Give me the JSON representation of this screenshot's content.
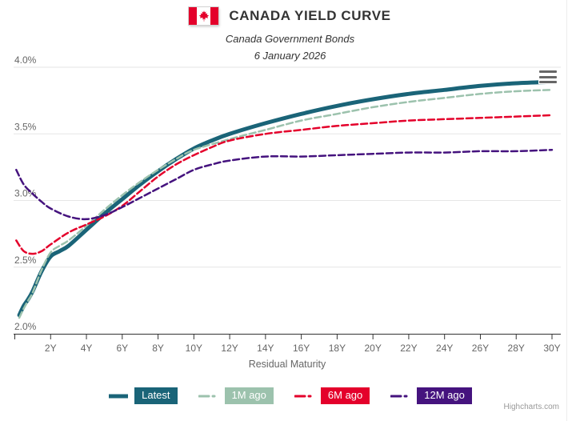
{
  "header": {
    "title": "CANADA YIELD CURVE",
    "subtitle": "Canada Government Bonds",
    "date": "6 January 2026"
  },
  "credit": "Highcharts.com",
  "colors": {
    "latest": "#1a6478",
    "one_month": "#9cc2ad",
    "six_month": "#e4002b",
    "twelve_month": "#45137e",
    "grid": "#e6e6e6",
    "axis_line": "#333333",
    "axis_label": "#666666"
  },
  "chart_data": {
    "type": "line",
    "title": "CANADA YIELD CURVE",
    "subtitle": "Canada Government Bonds",
    "date": "6 January 2026",
    "xlabel": "Residual Maturity",
    "ylabel": "",
    "x_unit": "years",
    "xlim": [
      0,
      30
    ],
    "ylim": [
      2.0,
      4.0
    ],
    "grid": "horizontal-only",
    "legend_position": "bottom",
    "y_ticks": [
      {
        "value": 4.0,
        "label": "4.0%"
      },
      {
        "value": 3.5,
        "label": "3.5%"
      },
      {
        "value": 3.0,
        "label": "3.0%"
      },
      {
        "value": 2.5,
        "label": "2.5%"
      },
      {
        "value": 2.0,
        "label": "2.0%"
      }
    ],
    "x_ticks": [
      {
        "value": 2,
        "label": "2Y"
      },
      {
        "value": 4,
        "label": "4Y"
      },
      {
        "value": 6,
        "label": "6Y"
      },
      {
        "value": 8,
        "label": "8Y"
      },
      {
        "value": 10,
        "label": "10Y"
      },
      {
        "value": 12,
        "label": "12Y"
      },
      {
        "value": 14,
        "label": "14Y"
      },
      {
        "value": 16,
        "label": "16Y"
      },
      {
        "value": 18,
        "label": "18Y"
      },
      {
        "value": 20,
        "label": "20Y"
      },
      {
        "value": 22,
        "label": "22Y"
      },
      {
        "value": 24,
        "label": "24Y"
      },
      {
        "value": 26,
        "label": "26Y"
      },
      {
        "value": 28,
        "label": "28Y"
      },
      {
        "value": 30,
        "label": "30Y"
      }
    ],
    "series": [
      {
        "name": "Latest",
        "color": "#1a6478",
        "dash": "solid",
        "width": 5,
        "points": [
          [
            0.25,
            2.14
          ],
          [
            0.5,
            2.21
          ],
          [
            0.75,
            2.26
          ],
          [
            1,
            2.32
          ],
          [
            1.5,
            2.47
          ],
          [
            2,
            2.58
          ],
          [
            2.5,
            2.62
          ],
          [
            3,
            2.66
          ],
          [
            4,
            2.78
          ],
          [
            5,
            2.9
          ],
          [
            6,
            3.01
          ],
          [
            7,
            3.12
          ],
          [
            8,
            3.22
          ],
          [
            9,
            3.31
          ],
          [
            10,
            3.39
          ],
          [
            11,
            3.45
          ],
          [
            12,
            3.5
          ],
          [
            14,
            3.58
          ],
          [
            16,
            3.65
          ],
          [
            18,
            3.71
          ],
          [
            20,
            3.76
          ],
          [
            22,
            3.8
          ],
          [
            24,
            3.83
          ],
          [
            26,
            3.86
          ],
          [
            28,
            3.88
          ],
          [
            30,
            3.89
          ]
        ]
      },
      {
        "name": "1M ago",
        "color": "#9cc2ad",
        "dash": "dash",
        "width": 2.5,
        "points": [
          [
            0.25,
            2.12
          ],
          [
            0.5,
            2.19
          ],
          [
            0.75,
            2.25
          ],
          [
            1,
            2.31
          ],
          [
            1.5,
            2.48
          ],
          [
            2,
            2.61
          ],
          [
            2.5,
            2.66
          ],
          [
            3,
            2.7
          ],
          [
            4,
            2.81
          ],
          [
            5,
            2.93
          ],
          [
            6,
            3.04
          ],
          [
            7,
            3.14
          ],
          [
            8,
            3.23
          ],
          [
            9,
            3.31
          ],
          [
            10,
            3.38
          ],
          [
            12,
            3.46
          ],
          [
            14,
            3.53
          ],
          [
            16,
            3.6
          ],
          [
            18,
            3.65
          ],
          [
            20,
            3.7
          ],
          [
            22,
            3.74
          ],
          [
            24,
            3.77
          ],
          [
            26,
            3.8
          ],
          [
            28,
            3.82
          ],
          [
            30,
            3.83
          ]
        ]
      },
      {
        "name": "6M ago",
        "color": "#e4002b",
        "dash": "dash",
        "width": 2.5,
        "points": [
          [
            0.08,
            2.7
          ],
          [
            0.5,
            2.62
          ],
          [
            1,
            2.6
          ],
          [
            1.5,
            2.62
          ],
          [
            2,
            2.67
          ],
          [
            3,
            2.76
          ],
          [
            4,
            2.82
          ],
          [
            5,
            2.88
          ],
          [
            6,
            2.96
          ],
          [
            7,
            3.07
          ],
          [
            8,
            3.18
          ],
          [
            9,
            3.27
          ],
          [
            10,
            3.34
          ],
          [
            11,
            3.4
          ],
          [
            12,
            3.45
          ],
          [
            14,
            3.5
          ],
          [
            16,
            3.53
          ],
          [
            18,
            3.56
          ],
          [
            20,
            3.58
          ],
          [
            22,
            3.6
          ],
          [
            24,
            3.61
          ],
          [
            26,
            3.62
          ],
          [
            28,
            3.63
          ],
          [
            30,
            3.64
          ]
        ]
      },
      {
        "name": "12M ago",
        "color": "#45137e",
        "dash": "dash",
        "width": 2.5,
        "points": [
          [
            0.08,
            3.23
          ],
          [
            0.5,
            3.12
          ],
          [
            1,
            3.05
          ],
          [
            1.5,
            2.99
          ],
          [
            2,
            2.94
          ],
          [
            3,
            2.88
          ],
          [
            4,
            2.86
          ],
          [
            5,
            2.89
          ],
          [
            6,
            2.95
          ],
          [
            7,
            3.02
          ],
          [
            8,
            3.09
          ],
          [
            9,
            3.16
          ],
          [
            10,
            3.23
          ],
          [
            11,
            3.27
          ],
          [
            12,
            3.3
          ],
          [
            14,
            3.33
          ],
          [
            16,
            3.33
          ],
          [
            18,
            3.34
          ],
          [
            20,
            3.35
          ],
          [
            22,
            3.36
          ],
          [
            24,
            3.36
          ],
          [
            26,
            3.37
          ],
          [
            28,
            3.37
          ],
          [
            30,
            3.38
          ]
        ]
      }
    ]
  }
}
